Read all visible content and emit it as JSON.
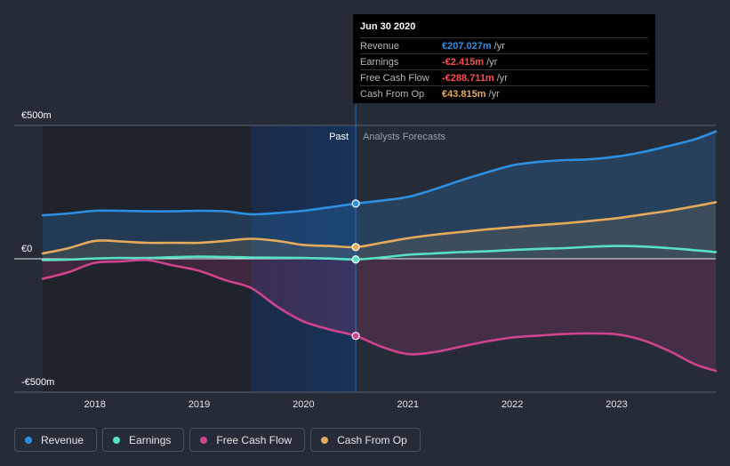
{
  "chart_data": {
    "type": "line",
    "title": "",
    "xlabel": "",
    "ylabel": "",
    "y_axis_labels": [
      "€500m",
      "€0",
      "-€500m"
    ],
    "ylim": [
      -500,
      500
    ],
    "xlim": [
      2017.5,
      2023.95
    ],
    "x_ticks": [
      2018,
      2019,
      2020,
      2021,
      2022,
      2023
    ],
    "x_tick_labels": [
      "2018",
      "2019",
      "2020",
      "2021",
      "2022",
      "2023"
    ],
    "past_label": "Past",
    "forecast_label": "Analysts Forecasts",
    "divider_x": 2020.5,
    "highlight_start_x": 2019.5,
    "series": [
      {
        "name": "Revenue",
        "color": "#2e8fe0",
        "area": true,
        "values": [
          [
            2017.5,
            163
          ],
          [
            2017.75,
            170
          ],
          [
            2018.0,
            180
          ],
          [
            2018.25,
            180
          ],
          [
            2018.5,
            178
          ],
          [
            2018.75,
            178
          ],
          [
            2019.0,
            180
          ],
          [
            2019.25,
            178
          ],
          [
            2019.5,
            167
          ],
          [
            2019.75,
            172
          ],
          [
            2020.0,
            180
          ],
          [
            2020.25,
            193
          ],
          [
            2020.5,
            207
          ],
          [
            2020.75,
            218
          ],
          [
            2021.0,
            232
          ],
          [
            2021.25,
            260
          ],
          [
            2021.5,
            293
          ],
          [
            2021.75,
            323
          ],
          [
            2022.0,
            350
          ],
          [
            2022.25,
            363
          ],
          [
            2022.5,
            370
          ],
          [
            2022.75,
            373
          ],
          [
            2023.0,
            383
          ],
          [
            2023.25,
            400
          ],
          [
            2023.5,
            423
          ],
          [
            2023.75,
            448
          ],
          [
            2023.95,
            477
          ]
        ]
      },
      {
        "name": "Earnings",
        "color": "#58e1c6",
        "area": false,
        "values": [
          [
            2017.5,
            -5
          ],
          [
            2017.75,
            -3
          ],
          [
            2018.0,
            1
          ],
          [
            2018.25,
            3
          ],
          [
            2018.5,
            3
          ],
          [
            2018.75,
            6
          ],
          [
            2019.0,
            8
          ],
          [
            2019.25,
            7
          ],
          [
            2019.5,
            5
          ],
          [
            2019.75,
            4
          ],
          [
            2020.0,
            3
          ],
          [
            2020.25,
            1
          ],
          [
            2020.5,
            -2.4
          ],
          [
            2020.75,
            5
          ],
          [
            2021.0,
            15
          ],
          [
            2021.25,
            20
          ],
          [
            2021.5,
            25
          ],
          [
            2021.75,
            28
          ],
          [
            2022.0,
            33
          ],
          [
            2022.25,
            37
          ],
          [
            2022.5,
            40
          ],
          [
            2022.75,
            45
          ],
          [
            2023.0,
            48
          ],
          [
            2023.25,
            46
          ],
          [
            2023.5,
            40
          ],
          [
            2023.75,
            32
          ],
          [
            2023.95,
            25
          ]
        ]
      },
      {
        "name": "Free Cash Flow",
        "color": "#d0438d",
        "area": true,
        "values": [
          [
            2017.5,
            -75
          ],
          [
            2017.75,
            -50
          ],
          [
            2018.0,
            -15
          ],
          [
            2018.25,
            -10
          ],
          [
            2018.5,
            -5
          ],
          [
            2018.75,
            -25
          ],
          [
            2019.0,
            -45
          ],
          [
            2019.25,
            -80
          ],
          [
            2019.5,
            -110
          ],
          [
            2019.75,
            -180
          ],
          [
            2020.0,
            -235
          ],
          [
            2020.25,
            -265
          ],
          [
            2020.5,
            -289
          ],
          [
            2020.75,
            -330
          ],
          [
            2021.0,
            -357
          ],
          [
            2021.25,
            -350
          ],
          [
            2021.5,
            -330
          ],
          [
            2021.75,
            -310
          ],
          [
            2022.0,
            -295
          ],
          [
            2022.25,
            -288
          ],
          [
            2022.5,
            -282
          ],
          [
            2022.75,
            -280
          ],
          [
            2023.0,
            -283
          ],
          [
            2023.25,
            -305
          ],
          [
            2023.5,
            -345
          ],
          [
            2023.75,
            -395
          ],
          [
            2023.95,
            -420
          ]
        ]
      },
      {
        "name": "Cash From Op",
        "color": "#e5aa5b",
        "area": true,
        "values": [
          [
            2017.5,
            20
          ],
          [
            2017.75,
            40
          ],
          [
            2018.0,
            67
          ],
          [
            2018.25,
            65
          ],
          [
            2018.5,
            60
          ],
          [
            2018.75,
            60
          ],
          [
            2019.0,
            60
          ],
          [
            2019.25,
            67
          ],
          [
            2019.5,
            75
          ],
          [
            2019.75,
            67
          ],
          [
            2020.0,
            52
          ],
          [
            2020.25,
            48
          ],
          [
            2020.5,
            44
          ],
          [
            2020.75,
            60
          ],
          [
            2021.0,
            77
          ],
          [
            2021.25,
            90
          ],
          [
            2021.5,
            100
          ],
          [
            2021.75,
            110
          ],
          [
            2022.0,
            118
          ],
          [
            2022.25,
            126
          ],
          [
            2022.5,
            133
          ],
          [
            2022.75,
            142
          ],
          [
            2023.0,
            152
          ],
          [
            2023.25,
            166
          ],
          [
            2023.5,
            180
          ],
          [
            2023.75,
            197
          ],
          [
            2023.95,
            212
          ]
        ]
      }
    ],
    "tooltip": {
      "date": "Jun 30 2020",
      "x": 2020.5,
      "rows": [
        {
          "name": "Revenue",
          "value": "€207.027m",
          "unit": "/yr",
          "color": "#2e8fe0"
        },
        {
          "name": "Earnings",
          "value": "-€2.415m",
          "unit": "/yr",
          "color": "#ff4d4d"
        },
        {
          "name": "Free Cash Flow",
          "value": "-€288.711m",
          "unit": "/yr",
          "color": "#ff4d4d"
        },
        {
          "name": "Cash From Op",
          "value": "€43.815m",
          "unit": "/yr",
          "color": "#e5aa5b"
        }
      ]
    }
  },
  "legend": [
    {
      "name": "Revenue",
      "color": "#2e8fe0"
    },
    {
      "name": "Earnings",
      "color": "#58e1c6"
    },
    {
      "name": "Free Cash Flow",
      "color": "#d0438d"
    },
    {
      "name": "Cash From Op",
      "color": "#e5aa5b"
    }
  ]
}
